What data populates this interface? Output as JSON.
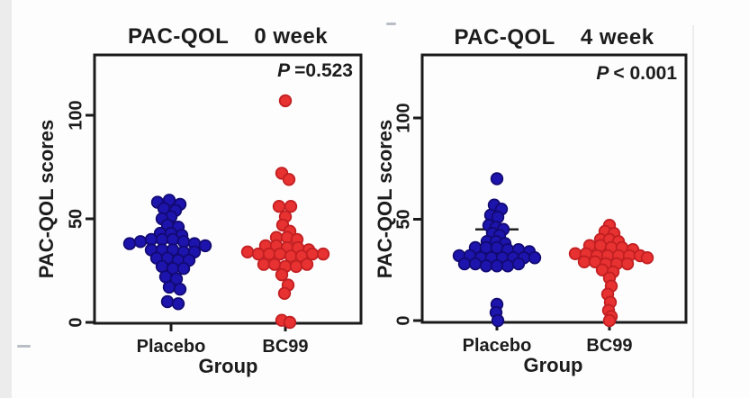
{
  "figure": {
    "description": "Two beeswarm dot plots comparing PAC-QOL scores between Placebo and BC99 groups"
  },
  "chart_data": [
    {
      "type": "scatter",
      "title": "PAC-QOL",
      "subtitle": "0 week",
      "p_label": {
        "symbol": "P",
        "text": "=0.523"
      },
      "ylabel": "PAC-QOL scores",
      "xlabel": "Group",
      "ylim": [
        0,
        130
      ],
      "yticks": [
        0,
        50,
        100
      ],
      "grid": false,
      "legend": "none",
      "categories": [
        "Placebo",
        "BC99"
      ],
      "groups": [
        {
          "name": "Placebo",
          "fill": "#1d14ad",
          "stroke": "#120a73",
          "mean": 35,
          "mean_halfwidth": 28,
          "points": [
            [
              -15,
              58
            ],
            [
              -2,
              59
            ],
            [
              10,
              57
            ],
            [
              -8,
              55
            ],
            [
              5,
              54
            ],
            [
              0,
              51
            ],
            [
              -10,
              50
            ],
            [
              -4,
              47
            ],
            [
              8,
              46
            ],
            [
              -12,
              43
            ],
            [
              0,
              43
            ],
            [
              12,
              42
            ],
            [
              -46,
              38
            ],
            [
              -34,
              39
            ],
            [
              -22,
              40
            ],
            [
              -10,
              40
            ],
            [
              2,
              40
            ],
            [
              14,
              39
            ],
            [
              26,
              38
            ],
            [
              38,
              37
            ],
            [
              -22,
              35
            ],
            [
              -10,
              35
            ],
            [
              2,
              35
            ],
            [
              14,
              34
            ],
            [
              26,
              34
            ],
            [
              -16,
              31
            ],
            [
              -4,
              31
            ],
            [
              8,
              30
            ],
            [
              20,
              30
            ],
            [
              -10,
              27
            ],
            [
              2,
              26
            ],
            [
              14,
              26
            ],
            [
              -6,
              22
            ],
            [
              6,
              21
            ],
            [
              -2,
              17
            ],
            [
              10,
              16
            ],
            [
              -4,
              10
            ],
            [
              8,
              9
            ]
          ]
        },
        {
          "name": "BC99",
          "fill": "#e73231",
          "stroke": "#c21f22",
          "mean": 32.5,
          "mean_halfwidth": 34,
          "points": [
            [
              0,
              107
            ],
            [
              -4,
              72
            ],
            [
              4,
              69
            ],
            [
              -7,
              56
            ],
            [
              6,
              56
            ],
            [
              0,
              51
            ],
            [
              -3,
              47
            ],
            [
              5,
              44
            ],
            [
              -10,
              41
            ],
            [
              2,
              41
            ],
            [
              13,
              40
            ],
            [
              -22,
              37
            ],
            [
              -10,
              37
            ],
            [
              2,
              36
            ],
            [
              14,
              36
            ],
            [
              26,
              35
            ],
            [
              -42,
              34
            ],
            [
              -30,
              33
            ],
            [
              -18,
              33
            ],
            [
              -6,
              33
            ],
            [
              6,
              32
            ],
            [
              18,
              32
            ],
            [
              30,
              33
            ],
            [
              42,
              33
            ],
            [
              -24,
              28
            ],
            [
              -12,
              28
            ],
            [
              0,
              27
            ],
            [
              12,
              27
            ],
            [
              24,
              28
            ],
            [
              -4,
              23
            ],
            [
              3,
              18
            ],
            [
              -1,
              14
            ],
            [
              -4,
              1
            ],
            [
              5,
              0
            ]
          ]
        }
      ]
    },
    {
      "type": "scatter",
      "title": "PAC-QOL",
      "subtitle": "4 week",
      "p_label": {
        "symbol": "P",
        "text": "< 0.001"
      },
      "ylabel": "PAC-QOL scores",
      "xlabel": "Group",
      "ylim": [
        0,
        130
      ],
      "yticks": [
        0,
        50,
        100
      ],
      "grid": false,
      "legend": "none",
      "categories": [
        "Placebo",
        "BC99"
      ],
      "groups": [
        {
          "name": "Placebo",
          "fill": "#1d14ad",
          "stroke": "#120a73",
          "mean": 45,
          "mean_halfwidth": 24,
          "points": [
            [
              0,
              70
            ],
            [
              -3,
              57
            ],
            [
              5,
              55
            ],
            [
              -7,
              52
            ],
            [
              1,
              51
            ],
            [
              -9,
              47
            ],
            [
              -1,
              46
            ],
            [
              7,
              45
            ],
            [
              -5,
              43
            ],
            [
              3,
              42
            ],
            [
              -11,
              39
            ],
            [
              -1,
              39
            ],
            [
              9,
              38
            ],
            [
              -24,
              36
            ],
            [
              -12,
              36
            ],
            [
              0,
              36
            ],
            [
              12,
              35
            ],
            [
              24,
              35
            ],
            [
              36,
              34
            ],
            [
              -42,
              32
            ],
            [
              -30,
              32
            ],
            [
              -18,
              31
            ],
            [
              -6,
              31
            ],
            [
              6,
              31
            ],
            [
              18,
              31
            ],
            [
              30,
              31
            ],
            [
              42,
              31
            ],
            [
              -36,
              28
            ],
            [
              -24,
              28
            ],
            [
              -12,
              27
            ],
            [
              0,
              27
            ],
            [
              12,
              27
            ],
            [
              24,
              28
            ],
            [
              0,
              8
            ],
            [
              -1,
              4
            ],
            [
              1,
              0
            ]
          ]
        },
        {
          "name": "BC99",
          "fill": "#e73231",
          "stroke": "#c21f22",
          "mean": 31,
          "mean_halfwidth": 28,
          "points": [
            [
              0,
              47
            ],
            [
              -5,
              44
            ],
            [
              5,
              43
            ],
            [
              -10,
              40
            ],
            [
              0,
              40
            ],
            [
              10,
              39
            ],
            [
              -22,
              37
            ],
            [
              -10,
              37
            ],
            [
              2,
              36
            ],
            [
              14,
              36
            ],
            [
              26,
              35
            ],
            [
              -38,
              33
            ],
            [
              -26,
              33
            ],
            [
              -14,
              32
            ],
            [
              -2,
              32
            ],
            [
              10,
              32
            ],
            [
              22,
              32
            ],
            [
              34,
              32
            ],
            [
              42,
              31
            ],
            [
              -28,
              29
            ],
            [
              -16,
              29
            ],
            [
              -4,
              28
            ],
            [
              8,
              28
            ],
            [
              20,
              28
            ],
            [
              -8,
              25
            ],
            [
              4,
              24
            ],
            [
              0,
              21
            ],
            [
              2,
              17
            ],
            [
              -2,
              13
            ],
            [
              1,
              9
            ],
            [
              -1,
              5
            ],
            [
              2,
              2
            ],
            [
              0,
              0
            ]
          ]
        }
      ]
    }
  ]
}
